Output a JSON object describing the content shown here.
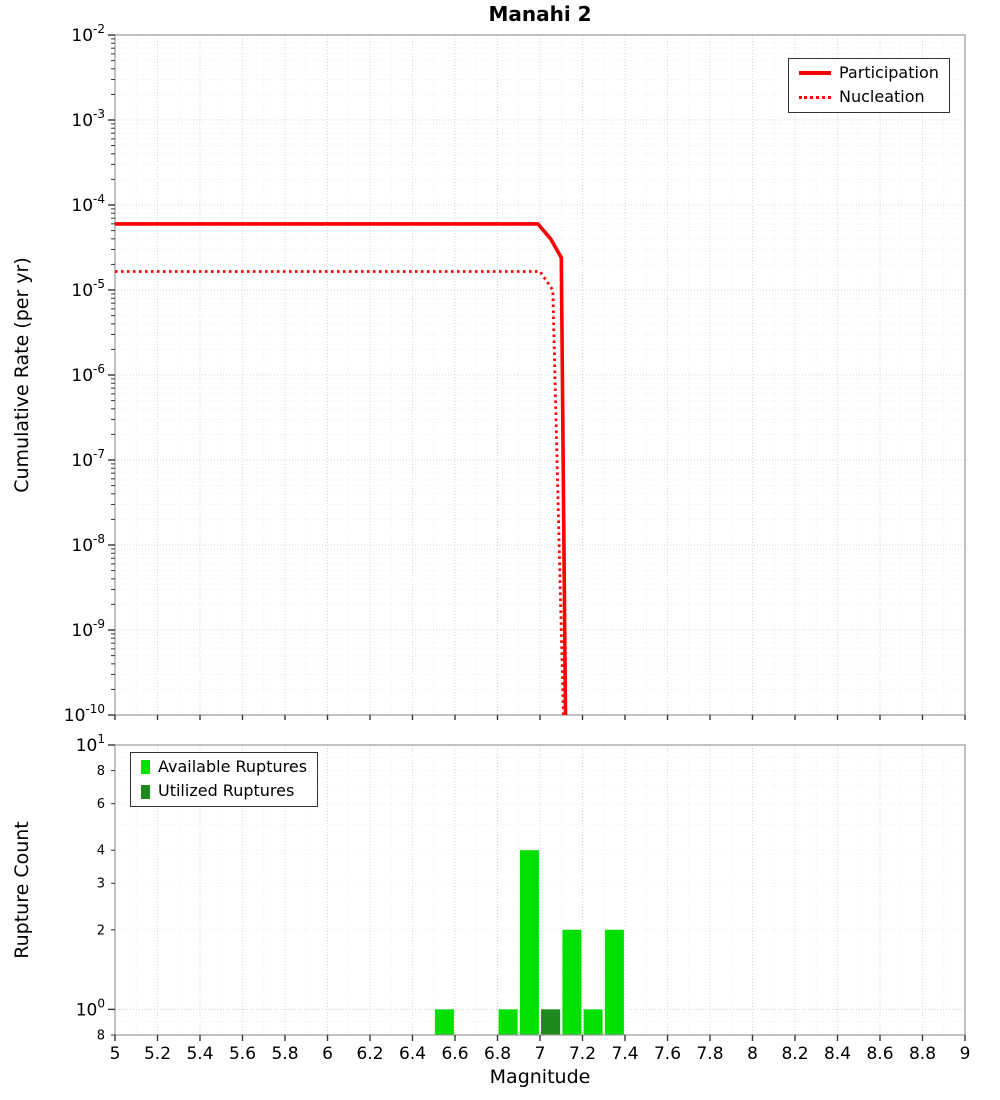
{
  "title": "Manahi 2",
  "colors": {
    "participation": "#ff0000",
    "nucleation": "#ff0000",
    "available": "#00e000",
    "utilized": "#1e8a1e",
    "grid_major": "#d4d4d4",
    "grid_minor": "#efefef",
    "frame": "#999999",
    "tick": "#333333"
  },
  "axes": {
    "top_yticks": [
      {
        "value": 0.01,
        "exp": "-2"
      },
      {
        "value": 0.001,
        "exp": "-3"
      },
      {
        "value": 0.0001,
        "exp": "-4"
      },
      {
        "value": 1e-05,
        "exp": "-5"
      },
      {
        "value": 1e-06,
        "exp": "-6"
      },
      {
        "value": 1e-07,
        "exp": "-7"
      },
      {
        "value": 1e-08,
        "exp": "-8"
      },
      {
        "value": 1e-09,
        "exp": "-9"
      },
      {
        "value": 1e-10,
        "exp": "-10"
      }
    ],
    "bottom_yticks": [
      {
        "value": 10,
        "label": "10",
        "exp": "1"
      },
      {
        "value": 8,
        "label": "8"
      },
      {
        "value": 6,
        "label": "6"
      },
      {
        "value": 4,
        "label": "4"
      },
      {
        "value": 3,
        "label": "3"
      },
      {
        "value": 2,
        "label": "2"
      },
      {
        "value": 1,
        "label": "10",
        "exp": "0"
      },
      {
        "value": 0.8,
        "label": "8"
      }
    ],
    "xticks": [
      {
        "value": 5,
        "label": "5"
      },
      {
        "value": 5.2,
        "label": "5.2"
      },
      {
        "value": 5.4,
        "label": "5.4"
      },
      {
        "value": 5.6,
        "label": "5.6"
      },
      {
        "value": 5.8,
        "label": "5.8"
      },
      {
        "value": 6,
        "label": "6"
      },
      {
        "value": 6.2,
        "label": "6.2"
      },
      {
        "value": 6.4,
        "label": "6.4"
      },
      {
        "value": 6.6,
        "label": "6.6"
      },
      {
        "value": 6.8,
        "label": "6.8"
      },
      {
        "value": 7,
        "label": "7"
      },
      {
        "value": 7.2,
        "label": "7.2"
      },
      {
        "value": 7.4,
        "label": "7.4"
      },
      {
        "value": 7.6,
        "label": "7.6"
      },
      {
        "value": 7.8,
        "label": "7.8"
      },
      {
        "value": 8,
        "label": "8"
      },
      {
        "value": 8.2,
        "label": "8.2"
      },
      {
        "value": 8.4,
        "label": "8.4"
      },
      {
        "value": 8.6,
        "label": "8.6"
      },
      {
        "value": 8.8,
        "label": "8.8"
      },
      {
        "value": 9,
        "label": "9"
      }
    ]
  },
  "chart_data": [
    {
      "type": "line",
      "title": "Manahi 2",
      "xlabel": "Magnitude",
      "ylabel": "Cumulative Rate (per yr)",
      "xlim": [
        5,
        9
      ],
      "ylim": [
        1e-10,
        0.01
      ],
      "yscale": "log",
      "grid": true,
      "legend_position": "upper right",
      "series": [
        {
          "name": "Participation",
          "style": "solid",
          "color": "#ff0000",
          "points": [
            [
              5,
              6e-05
            ],
            [
              6.99,
              6e-05
            ],
            [
              7.05,
              4e-05
            ],
            [
              7.1,
              2.4e-05
            ],
            [
              7.12,
              1e-10
            ]
          ]
        },
        {
          "name": "Nucleation",
          "style": "dotted",
          "color": "#ff0000",
          "points": [
            [
              5,
              1.65e-05
            ],
            [
              7.0,
              1.65e-05
            ],
            [
              7.06,
              1e-05
            ],
            [
              7.11,
              1e-10
            ]
          ]
        }
      ]
    },
    {
      "type": "bar",
      "xlabel": "Magnitude",
      "ylabel": "Rupture Count",
      "xlim": [
        5,
        9
      ],
      "ylim": [
        0.8,
        10
      ],
      "yscale": "log",
      "bin_width": 0.1,
      "legend_position": "upper left",
      "series": [
        {
          "name": "Available Ruptures",
          "color": "#00e000",
          "bins": [
            {
              "m": 6.55,
              "count": 1
            },
            {
              "m": 6.85,
              "count": 1
            },
            {
              "m": 6.95,
              "count": 4
            },
            {
              "m": 7.05,
              "count": 1
            },
            {
              "m": 7.15,
              "count": 2
            },
            {
              "m": 7.25,
              "count": 1
            },
            {
              "m": 7.35,
              "count": 2
            }
          ]
        },
        {
          "name": "Utilized Ruptures",
          "color": "#1e8a1e",
          "bins": [
            {
              "m": 7.05,
              "count": 1
            }
          ]
        }
      ]
    }
  ]
}
